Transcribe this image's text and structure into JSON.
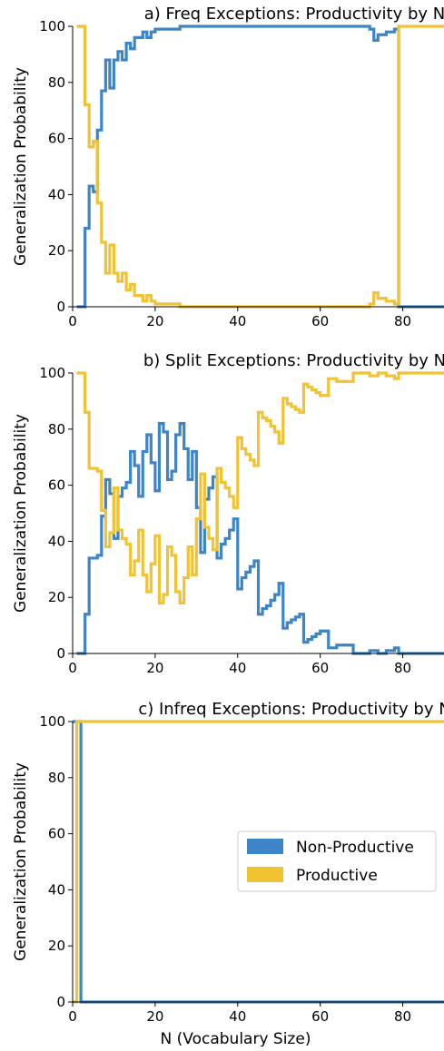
{
  "figure": {
    "xlabel": "N (Vocabulary Size)",
    "ylabel": "Generalization Probability",
    "legend": {
      "placement": "center-right of panel c",
      "entries": [
        {
          "name": "Non-Productive",
          "color": "#3d85c6"
        },
        {
          "name": "Productive",
          "color": "#f1c232"
        }
      ]
    }
  },
  "chart_data": [
    {
      "type": "line",
      "step": true,
      "title": "a) Freq Exceptions: Productivity by N",
      "xlabel": "",
      "ylabel": "Generalization Probability",
      "xlim": [
        0,
        90
      ],
      "ylim": [
        0,
        100
      ],
      "x_ticks": [
        "0",
        "20",
        "40",
        "60",
        "80"
      ],
      "y_ticks": [
        "0",
        "20",
        "40",
        "60",
        "80",
        "100"
      ],
      "series": [
        {
          "name": "Non-Productive",
          "color": "#3d85c6",
          "points": [
            [
              1,
              0
            ],
            [
              2,
              0
            ],
            [
              3,
              28
            ],
            [
              4,
              43
            ],
            [
              5,
              41
            ],
            [
              6,
              63
            ],
            [
              7,
              77
            ],
            [
              8,
              88
            ],
            [
              9,
              78
            ],
            [
              10,
              88
            ],
            [
              11,
              91
            ],
            [
              12,
              88
            ],
            [
              13,
              94
            ],
            [
              14,
              92
            ],
            [
              15,
              96
            ],
            [
              16,
              96
            ],
            [
              17,
              98
            ],
            [
              18,
              96
            ],
            [
              19,
              98
            ],
            [
              20,
              99
            ],
            [
              22,
              99
            ],
            [
              24,
              99
            ],
            [
              26,
              100
            ],
            [
              30,
              100
            ],
            [
              40,
              100
            ],
            [
              50,
              100
            ],
            [
              60,
              100
            ],
            [
              70,
              100
            ],
            [
              72,
              99
            ],
            [
              73,
              95
            ],
            [
              74,
              97
            ],
            [
              75,
              97
            ],
            [
              76,
              98
            ],
            [
              77,
              98
            ],
            [
              78,
              99
            ],
            [
              79,
              0
            ],
            [
              90,
              0
            ]
          ]
        },
        {
          "name": "Productive",
          "color": "#f1c232",
          "points": [
            [
              1,
              100
            ],
            [
              2,
              100
            ],
            [
              3,
              72
            ],
            [
              4,
              57
            ],
            [
              5,
              59
            ],
            [
              6,
              37
            ],
            [
              7,
              23
            ],
            [
              8,
              12
            ],
            [
              9,
              22
            ],
            [
              10,
              12
            ],
            [
              11,
              9
            ],
            [
              12,
              12
            ],
            [
              13,
              6
            ],
            [
              14,
              8
            ],
            [
              15,
              4
            ],
            [
              16,
              4
            ],
            [
              17,
              2
            ],
            [
              18,
              4
            ],
            [
              19,
              2
            ],
            [
              20,
              1
            ],
            [
              22,
              1
            ],
            [
              24,
              1
            ],
            [
              26,
              0
            ],
            [
              30,
              0
            ],
            [
              40,
              0
            ],
            [
              50,
              0
            ],
            [
              60,
              0
            ],
            [
              70,
              0
            ],
            [
              72,
              1
            ],
            [
              73,
              5
            ],
            [
              74,
              3
            ],
            [
              75,
              3
            ],
            [
              76,
              2
            ],
            [
              77,
              2
            ],
            [
              78,
              1
            ],
            [
              79,
              100
            ],
            [
              90,
              100
            ]
          ]
        }
      ]
    },
    {
      "type": "line",
      "step": true,
      "title": "b) Split Exceptions: Productivity by N",
      "xlabel": "",
      "ylabel": "Generalization Probability",
      "xlim": [
        0,
        90
      ],
      "ylim": [
        0,
        100
      ],
      "x_ticks": [
        "0",
        "20",
        "40",
        "60",
        "80"
      ],
      "y_ticks": [
        "0",
        "20",
        "40",
        "60",
        "80",
        "100"
      ],
      "series": [
        {
          "name": "Non-Productive",
          "color": "#3d85c6",
          "points": [
            [
              1,
              0
            ],
            [
              2,
              0
            ],
            [
              3,
              14
            ],
            [
              4,
              34
            ],
            [
              5,
              34
            ],
            [
              6,
              35
            ],
            [
              7,
              49
            ],
            [
              8,
              62
            ],
            [
              9,
              57
            ],
            [
              10,
              41
            ],
            [
              11,
              56
            ],
            [
              12,
              59
            ],
            [
              13,
              61
            ],
            [
              14,
              72
            ],
            [
              15,
              67
            ],
            [
              16,
              56
            ],
            [
              17,
              72
            ],
            [
              18,
              78
            ],
            [
              19,
              68
            ],
            [
              20,
              58
            ],
            [
              21,
              82
            ],
            [
              22,
              79
            ],
            [
              23,
              62
            ],
            [
              24,
              65
            ],
            [
              25,
              78
            ],
            [
              26,
              82
            ],
            [
              27,
              73
            ],
            [
              28,
              62
            ],
            [
              29,
              72
            ],
            [
              30,
              52
            ],
            [
              31,
              36
            ],
            [
              32,
              55
            ],
            [
              33,
              59
            ],
            [
              34,
              63
            ],
            [
              35,
              34
            ],
            [
              36,
              39
            ],
            [
              37,
              41
            ],
            [
              38,
              44
            ],
            [
              39,
              48
            ],
            [
              40,
              23
            ],
            [
              41,
              27
            ],
            [
              42,
              29
            ],
            [
              43,
              31
            ],
            [
              44,
              33
            ],
            [
              45,
              14
            ],
            [
              46,
              16
            ],
            [
              47,
              17
            ],
            [
              48,
              19
            ],
            [
              49,
              21
            ],
            [
              50,
              25
            ],
            [
              51,
              9
            ],
            [
              52,
              11
            ],
            [
              53,
              12
            ],
            [
              54,
              13
            ],
            [
              55,
              14
            ],
            [
              56,
              4
            ],
            [
              57,
              5
            ],
            [
              58,
              6
            ],
            [
              59,
              7
            ],
            [
              60,
              8
            ],
            [
              62,
              2
            ],
            [
              64,
              3
            ],
            [
              66,
              3
            ],
            [
              68,
              0
            ],
            [
              70,
              0
            ],
            [
              72,
              1
            ],
            [
              74,
              0
            ],
            [
              76,
              1
            ],
            [
              77,
              1
            ],
            [
              78,
              2
            ],
            [
              79,
              0
            ],
            [
              90,
              0
            ]
          ]
        },
        {
          "name": "Productive",
          "color": "#f1c232",
          "points": [
            [
              1,
              100
            ],
            [
              2,
              100
            ],
            [
              3,
              86
            ],
            [
              4,
              66
            ],
            [
              5,
              66
            ],
            [
              6,
              65
            ],
            [
              7,
              51
            ],
            [
              8,
              38
            ],
            [
              9,
              43
            ],
            [
              10,
              59
            ],
            [
              11,
              44
            ],
            [
              12,
              41
            ],
            [
              13,
              39
            ],
            [
              14,
              28
            ],
            [
              15,
              33
            ],
            [
              16,
              44
            ],
            [
              17,
              28
            ],
            [
              18,
              22
            ],
            [
              19,
              32
            ],
            [
              20,
              42
            ],
            [
              21,
              18
            ],
            [
              22,
              21
            ],
            [
              23,
              38
            ],
            [
              24,
              35
            ],
            [
              25,
              22
            ],
            [
              26,
              18
            ],
            [
              27,
              27
            ],
            [
              28,
              38
            ],
            [
              29,
              28
            ],
            [
              30,
              48
            ],
            [
              31,
              64
            ],
            [
              32,
              45
            ],
            [
              33,
              41
            ],
            [
              34,
              37
            ],
            [
              35,
              66
            ],
            [
              36,
              61
            ],
            [
              37,
              59
            ],
            [
              38,
              56
            ],
            [
              39,
              52
            ],
            [
              40,
              77
            ],
            [
              41,
              73
            ],
            [
              42,
              71
            ],
            [
              43,
              69
            ],
            [
              44,
              67
            ],
            [
              45,
              86
            ],
            [
              46,
              84
            ],
            [
              47,
              83
            ],
            [
              48,
              81
            ],
            [
              49,
              79
            ],
            [
              50,
              75
            ],
            [
              51,
              91
            ],
            [
              52,
              89
            ],
            [
              53,
              88
            ],
            [
              54,
              87
            ],
            [
              55,
              86
            ],
            [
              56,
              96
            ],
            [
              57,
              95
            ],
            [
              58,
              94
            ],
            [
              59,
              93
            ],
            [
              60,
              92
            ],
            [
              62,
              98
            ],
            [
              64,
              97
            ],
            [
              66,
              97
            ],
            [
              68,
              100
            ],
            [
              70,
              100
            ],
            [
              72,
              99
            ],
            [
              74,
              100
            ],
            [
              76,
              99
            ],
            [
              77,
              99
            ],
            [
              78,
              98
            ],
            [
              79,
              100
            ],
            [
              90,
              100
            ]
          ]
        }
      ]
    },
    {
      "type": "line",
      "step": true,
      "title": "c) Infreq Exceptions: Productivity by N",
      "xlabel": "N (Vocabulary Size)",
      "ylabel": "Generalization Probability",
      "xlim": [
        0,
        90
      ],
      "ylim": [
        0,
        100
      ],
      "x_ticks": [
        "0",
        "20",
        "40",
        "60",
        "80"
      ],
      "y_ticks": [
        "0",
        "20",
        "40",
        "60",
        "80",
        "100"
      ],
      "series": [
        {
          "name": "Non-Productive",
          "color": "#3d85c6",
          "points": [
            [
              0,
              100
            ],
            [
              1,
              100
            ],
            [
              2,
              0
            ],
            [
              3,
              0
            ],
            [
              90,
              0
            ]
          ]
        },
        {
          "name": "Productive",
          "color": "#f1c232",
          "points": [
            [
              0,
              0
            ],
            [
              1,
              100
            ],
            [
              2,
              100
            ],
            [
              3,
              100
            ],
            [
              90,
              100
            ]
          ]
        }
      ]
    }
  ]
}
